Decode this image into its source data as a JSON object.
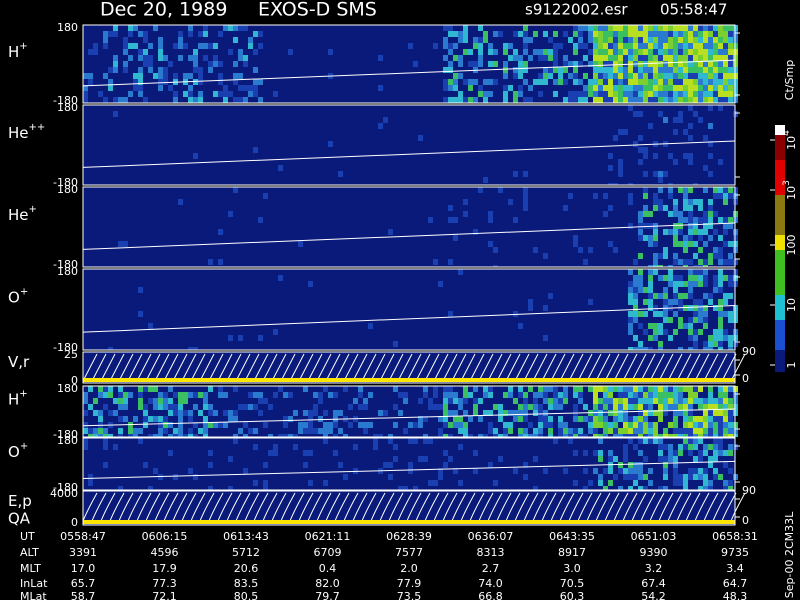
{
  "header": {
    "date": "Dec 20, 1989",
    "instrument": "EXOS-D SMS",
    "file": "s9122002.esr",
    "time": "05:58:47"
  },
  "panels": [
    {
      "label": {
        "base": "H",
        "sup": "+"
      },
      "ticks": [
        180,
        -180
      ]
    },
    {
      "label": {
        "base": "He",
        "sup": "++"
      },
      "ticks": [
        180,
        -180
      ]
    },
    {
      "label": {
        "base": "He",
        "sup": "+"
      },
      "ticks": [
        180,
        -180
      ]
    },
    {
      "label": {
        "base": "O",
        "sup": "+"
      },
      "ticks": [
        180,
        -180
      ]
    },
    {
      "label": {
        "base": "V,r"
      },
      "ticks": [
        25,
        0
      ],
      "right_ticks": [
        90,
        0
      ]
    },
    {
      "label": {
        "base": "H",
        "sup": "+"
      },
      "ticks": [
        180,
        -180
      ]
    },
    {
      "label": {
        "base": "O",
        "sup": "+"
      },
      "ticks": [
        180,
        -180
      ]
    },
    {
      "label": {
        "base": "E,p"
      },
      "label2": "QA",
      "ticks": [
        4000,
        0
      ],
      "right_ticks": [
        90,
        0
      ]
    }
  ],
  "colorbar": {
    "title": "Ct/Smp",
    "ticks": [
      {
        "base": "10",
        "sup": "4"
      },
      {
        "base": "10",
        "sup": "3"
      },
      100,
      10,
      1
    ]
  },
  "table": {
    "rows": [
      {
        "label": "UT",
        "values": [
          "0558:47",
          "0606:15",
          "0613:43",
          "0621:11",
          "0628:39",
          "0636:07",
          "0643:35",
          "0651:03",
          "0658:31"
        ]
      },
      {
        "label": "ALT",
        "values": [
          "3391",
          "4596",
          "5712",
          "6709",
          "7577",
          "8313",
          "8917",
          "9390",
          "9735"
        ]
      },
      {
        "label": "MLT",
        "values": [
          "17.0",
          "17.9",
          "20.6",
          "0.4",
          "2.0",
          "2.7",
          "3.0",
          "3.2",
          "3.4"
        ]
      },
      {
        "label": "InLat",
        "values": [
          "65.7",
          "77.3",
          "83.5",
          "82.0",
          "77.9",
          "74.0",
          "70.5",
          "67.4",
          "64.7"
        ]
      },
      {
        "label": "MLat",
        "values": [
          "58.7",
          "72.1",
          "80.5",
          "79.7",
          "73.5",
          "66.8",
          "60.3",
          "54.2",
          "48.3"
        ]
      }
    ]
  },
  "footer": "Sep-00 2CM33L"
}
